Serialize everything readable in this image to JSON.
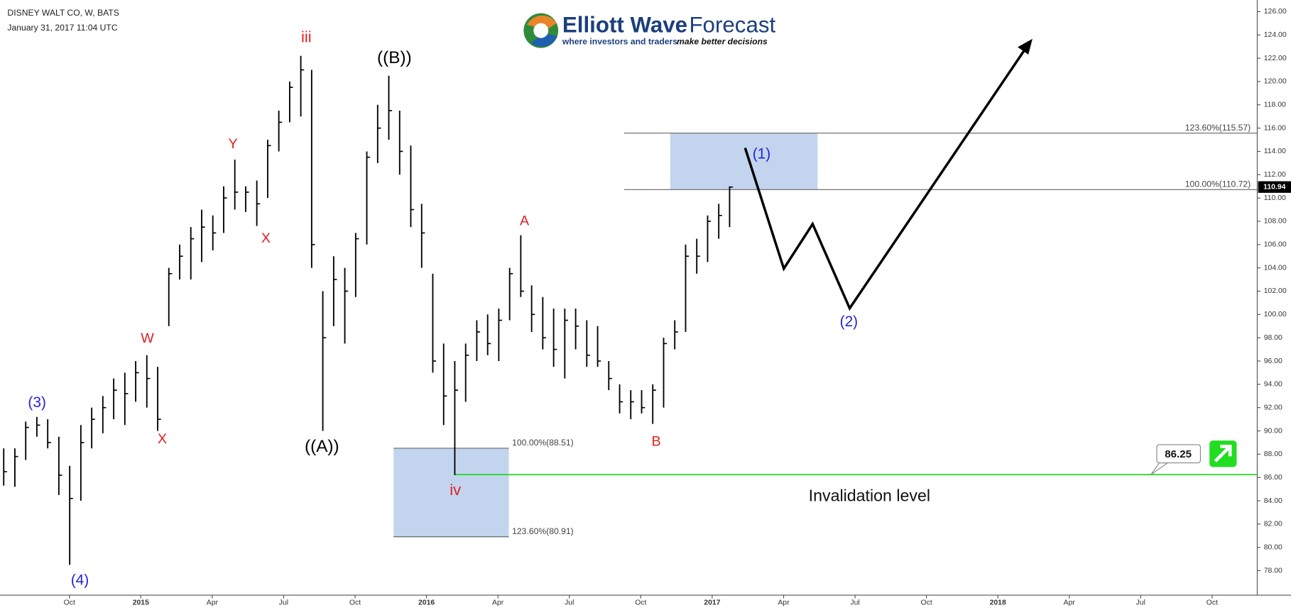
{
  "logo": {
    "name_bold": "Elliott Wave",
    "name_light": "Forecast",
    "tagline_plain": "where investors and traders",
    "tagline_bold": "make better decisions"
  },
  "chart_data": {
    "type": "ohlc",
    "symbol_title": "DISNEY WALT CO, W, BATS",
    "timestamp": "January 31, 2017 11:04 UTC",
    "color": "#000000",
    "x": [
      2014.52,
      2014.559,
      2014.597,
      2014.636,
      2014.674,
      2014.713,
      2014.751,
      2014.79,
      2014.828,
      2014.867,
      2014.905,
      2014.944,
      2014.982,
      2015.021,
      2015.059,
      2015.098,
      2015.136,
      2015.175,
      2015.213,
      2015.252,
      2015.29,
      2015.329,
      2015.367,
      2015.406,
      2015.444,
      2015.483,
      2015.521,
      2015.56,
      2015.598,
      2015.637,
      2015.675,
      2015.714,
      2015.752,
      2015.791,
      2015.829,
      2015.868,
      2015.906,
      2015.945,
      2015.983,
      2016.022,
      2016.06,
      2016.099,
      2016.137,
      2016.176,
      2016.214,
      2016.253,
      2016.291,
      2016.33,
      2016.368,
      2016.407,
      2016.445,
      2016.484,
      2016.522,
      2016.561,
      2016.599,
      2016.638,
      2016.676,
      2016.715,
      2016.753,
      2016.792,
      2016.83,
      2016.869,
      2016.907,
      2016.946,
      2016.984,
      2017.023,
      2017.061
    ],
    "high": [
      88.5,
      88.5,
      90.8,
      91.2,
      91.0,
      89.5,
      87.0,
      90.5,
      92.0,
      93.0,
      94.5,
      95.0,
      96.0,
      96.5,
      95.5,
      104.0,
      106.0,
      107.5,
      109.0,
      108.5,
      111.0,
      113.3,
      111.0,
      111.5,
      115.0,
      117.5,
      120.0,
      122.2,
      121.0,
      102.0,
      105.0,
      104.0,
      107.0,
      114.0,
      118.0,
      120.5,
      117.5,
      114.5,
      109.5,
      103.5,
      97.5,
      96.0,
      97.5,
      99.5,
      100.0,
      100.5,
      104.0,
      106.8,
      102.5,
      101.5,
      100.5,
      100.5,
      100.5,
      99.5,
      99.0,
      96.0,
      94.0,
      93.5,
      93.5,
      94.0,
      98.0,
      99.5,
      106.0,
      106.5,
      108.5,
      109.5,
      111.0
    ],
    "low": [
      85.3,
      85.2,
      87.5,
      89.5,
      88.5,
      84.5,
      78.5,
      84.0,
      88.5,
      89.8,
      91.0,
      90.5,
      92.5,
      92.0,
      90.0,
      99.0,
      103.0,
      103.0,
      104.5,
      105.5,
      107.0,
      109.0,
      108.8,
      107.6,
      110.0,
      114.0,
      116.5,
      117.0,
      104.0,
      90.0,
      99.0,
      97.5,
      101.5,
      106.0,
      113.0,
      115.0,
      112.0,
      107.5,
      104.0,
      95.0,
      90.5,
      86.2,
      92.5,
      96.0,
      96.5,
      96.0,
      99.5,
      101.5,
      98.5,
      97.0,
      95.5,
      94.5,
      97.0,
      95.5,
      95.5,
      93.5,
      91.5,
      91.0,
      91.5,
      90.6,
      92.0,
      97.0,
      98.5,
      103.5,
      104.5,
      106.5,
      107.5
    ],
    "close": [
      86.5,
      87.8,
      90.3,
      90.5,
      89.0,
      86.2,
      84.2,
      89.0,
      91.0,
      92.0,
      93.5,
      93.2,
      95.0,
      94.5,
      91.0,
      103.5,
      105.0,
      106.5,
      107.5,
      107.0,
      110.0,
      110.5,
      110.5,
      109.5,
      114.5,
      116.5,
      119.5,
      121.0,
      106.0,
      98.0,
      103.0,
      102.0,
      106.5,
      113.5,
      116.0,
      117.5,
      114.0,
      109.0,
      107.0,
      96.0,
      93.0,
      93.5,
      96.5,
      98.5,
      97.5,
      99.5,
      103.5,
      102.0,
      100.0,
      98.0,
      97.0,
      99.5,
      99.0,
      96.5,
      96.0,
      94.5,
      92.5,
      92.5,
      92.0,
      93.5,
      97.5,
      98.5,
      105.0,
      105.0,
      108.0,
      108.5,
      110.94
    ],
    "xlim": [
      2014.507,
      2018.908
    ],
    "xticks": [
      {
        "value": 2014.75,
        "label": "Oct"
      },
      2015,
      {
        "value": 2015.25,
        "label": "Apr"
      },
      {
        "value": 2015.5,
        "label": "Jul"
      },
      {
        "value": 2015.75,
        "label": "Oct"
      },
      2016,
      {
        "value": 2016.25,
        "label": "Apr"
      },
      {
        "value": 2016.5,
        "label": "Jul"
      },
      {
        "value": 2016.75,
        "label": "Oct"
      },
      2017,
      {
        "value": 2017.25,
        "label": "Apr"
      },
      {
        "value": 2017.5,
        "label": "Jul"
      },
      {
        "value": 2017.75,
        "label": "Oct"
      },
      2018,
      {
        "value": 2018.25,
        "label": "Apr"
      },
      {
        "value": 2018.5,
        "label": "Jul"
      },
      {
        "value": 2018.75,
        "label": "Oct"
      }
    ],
    "ylim": [
      75.9,
      127.0
    ],
    "yticks": [
      {
        "value": 78,
        "label": "78.00"
      },
      {
        "value": 80,
        "label": "80.00"
      },
      {
        "value": 82,
        "label": "82.00"
      },
      {
        "value": 84,
        "label": "84.00"
      },
      {
        "value": 86,
        "label": "86.00"
      },
      {
        "value": 88,
        "label": "88.00"
      },
      {
        "value": 90,
        "label": "90.00"
      },
      {
        "value": 92,
        "label": "92.00"
      },
      {
        "value": 94,
        "label": "94.00"
      },
      {
        "value": 96,
        "label": "96.00"
      },
      {
        "value": 98,
        "label": "98.00"
      },
      {
        "value": 100,
        "label": "100.00"
      },
      {
        "value": 102,
        "label": "102.00"
      },
      {
        "value": 104,
        "label": "104.00"
      },
      {
        "value": 106,
        "label": "106.00"
      },
      {
        "value": 108,
        "label": "108.00"
      },
      {
        "value": 110,
        "label": "110.00"
      },
      {
        "value": 112,
        "label": "112.00"
      },
      {
        "value": 114,
        "label": "114.00"
      },
      {
        "value": 116,
        "label": "116.00"
      },
      {
        "value": 118,
        "label": "118.00"
      },
      {
        "value": 120,
        "label": "120.00"
      },
      {
        "value": 122,
        "label": "122.00"
      },
      {
        "value": 124,
        "label": "124.00"
      },
      {
        "value": 126,
        "label": "126.00"
      }
    ],
    "fib_box_color": "#c3d5ee",
    "fib_levels": [
      {
        "label": "123.60%(115.57)",
        "value": 115.57
      },
      {
        "label": "100.00%(110.72)",
        "value": 110.72
      },
      {
        "label": "100.00%(88.51)",
        "value": 88.51
      },
      {
        "label": "123.60%(80.91)",
        "value": 80.91
      }
    ],
    "last_price": 110.94,
    "invalidation": {
      "level": 86.25,
      "label": "Invalidation level",
      "color": "#22dd22"
    },
    "wave_labels": [
      {
        "text": "(3)",
        "color": "#2424d6"
      },
      {
        "text": "(4)",
        "color": "#2424d6"
      },
      {
        "text": "W",
        "color": "#e02020"
      },
      {
        "text": "X",
        "color": "#e02020"
      },
      {
        "text": "Y",
        "color": "#e02020"
      },
      {
        "text": "X",
        "color": "#e02020"
      },
      {
        "text": "iii",
        "color": "#e02020"
      },
      {
        "text": "((A))",
        "color": "#000000"
      },
      {
        "text": "((B))",
        "color": "#000000"
      },
      {
        "text": "iv",
        "color": "#e02020"
      },
      {
        "text": "A",
        "color": "#e02020"
      },
      {
        "text": "B",
        "color": "#e02020"
      },
      {
        "text": "(1)",
        "color": "#2424d6"
      },
      {
        "text": "(2)",
        "color": "#2424d6"
      }
    ]
  }
}
